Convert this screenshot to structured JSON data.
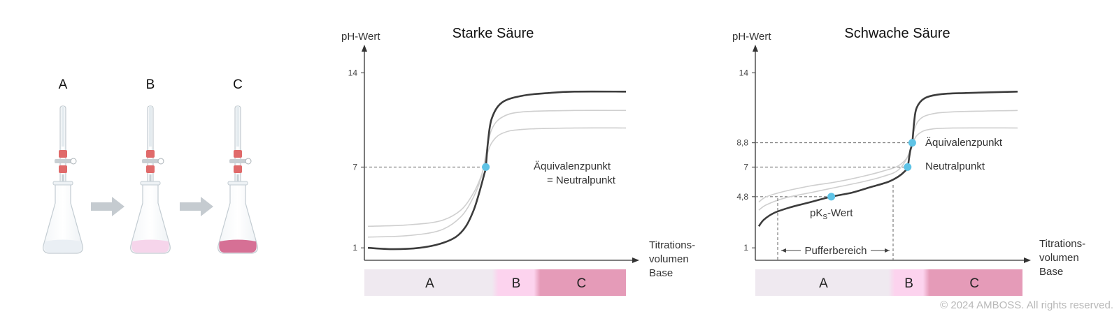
{
  "flasks": {
    "labels": [
      "A",
      "B",
      "C"
    ],
    "liquid_colors": [
      "#e9eef3",
      "#f5d3ea",
      "#d4688f"
    ],
    "arrow_color": "#c5cbd0",
    "stopcock_color": "#e06a6a"
  },
  "band_colors": {
    "A": "#efe9f0",
    "B": "#fcd3ee",
    "C": "#e59bb8"
  },
  "point_color": "#5ec3e6",
  "chart_data": [
    {
      "type": "line",
      "title": "Starke Säure",
      "ylabel": "pH-Wert",
      "xlabel_lines": [
        "Titrations-",
        "volumen",
        "Base"
      ],
      "yticks": [
        "1",
        "7",
        "14"
      ],
      "ylim": [
        0,
        16
      ],
      "annotations": [
        {
          "label_lines": [
            "Äquivalenzpunkt",
            "= Neutralpunkt"
          ],
          "ph": 7
        }
      ],
      "series": [
        {
          "role": "main",
          "x": [
            0,
            10,
            20,
            28,
            34,
            38,
            41,
            43,
            45,
            45.7,
            46.5,
            48,
            52,
            60,
            70,
            80,
            100
          ],
          "y": [
            1.0,
            0.9,
            1.0,
            1.3,
            1.8,
            2.6,
            3.8,
            5.0,
            6.4,
            7.0,
            8.8,
            10.6,
            11.8,
            12.3,
            12.5,
            12.6,
            12.6
          ]
        },
        {
          "role": "ghost",
          "x": [
            0,
            15,
            28,
            36,
            41,
            44,
            46,
            48,
            52,
            60,
            80,
            100
          ],
          "y": [
            1.8,
            1.9,
            2.3,
            3.3,
            4.8,
            6.3,
            8.2,
            9.8,
            10.7,
            11.1,
            11.2,
            11.2
          ]
        },
        {
          "role": "ghost",
          "x": [
            0,
            15,
            28,
            36,
            41,
            44,
            46,
            48,
            52,
            60,
            80,
            100
          ],
          "y": [
            2.6,
            2.7,
            3.0,
            3.8,
            5.1,
            6.4,
            7.8,
            8.8,
            9.5,
            9.8,
            9.9,
            9.9
          ]
        }
      ],
      "bands": [
        {
          "label": "A",
          "from": 0,
          "to": 50
        },
        {
          "label": "B",
          "from": 50,
          "to": 66
        },
        {
          "label": "C",
          "from": 66,
          "to": 100
        }
      ]
    },
    {
      "type": "line",
      "title": "Schwache Säure",
      "ylabel": "pH-Wert",
      "xlabel_lines": [
        "Titrations-",
        "volumen",
        "Base"
      ],
      "yticks": [
        "1",
        "4,8",
        "7",
        "8,8",
        "14"
      ],
      "ylim": [
        0,
        16
      ],
      "annotations": [
        {
          "label": "Äquivalenzpunkt",
          "ph": 8.8
        },
        {
          "label": "Neutralpunkt",
          "ph": 7
        },
        {
          "label": "pKS-Wert",
          "label_main": "pK",
          "label_sub": "S",
          "label_suffix": "-Wert",
          "ph": 4.8
        },
        {
          "label": "Pufferbereich"
        }
      ],
      "series": [
        {
          "role": "main",
          "x": [
            0,
            2,
            6,
            12,
            20,
            28,
            36,
            43,
            50,
            54,
            56.5,
            57.5,
            58.5,
            59.3,
            60,
            61,
            64,
            70,
            80,
            100
          ],
          "y": [
            2.6,
            3.1,
            3.6,
            4.0,
            4.4,
            4.8,
            5.1,
            5.5,
            5.9,
            6.3,
            6.7,
            7.0,
            8.2,
            8.8,
            10.3,
            11.4,
            12.1,
            12.4,
            12.5,
            12.6
          ]
        },
        {
          "role": "ghost",
          "x": [
            0,
            3,
            10,
            20,
            30,
            40,
            48,
            54,
            58,
            60,
            62,
            66,
            75,
            100
          ],
          "y": [
            3.8,
            4.2,
            4.7,
            5.1,
            5.5,
            5.9,
            6.3,
            6.8,
            8.0,
            9.7,
            10.5,
            10.9,
            11.1,
            11.2
          ]
        },
        {
          "role": "ghost",
          "x": [
            0,
            3,
            10,
            20,
            30,
            40,
            48,
            54,
            58,
            60,
            62,
            66,
            75,
            100
          ],
          "y": [
            4.4,
            4.8,
            5.2,
            5.6,
            5.9,
            6.3,
            6.7,
            7.1,
            7.9,
            9.0,
            9.5,
            9.8,
            9.9,
            9.9
          ]
        }
      ],
      "bands": [
        {
          "label": "A",
          "from": 0,
          "to": 51
        },
        {
          "label": "B",
          "from": 51,
          "to": 64
        },
        {
          "label": "C",
          "from": 64,
          "to": 100
        }
      ]
    }
  ],
  "copyright": "© 2024 AMBOSS. All rights reserved."
}
